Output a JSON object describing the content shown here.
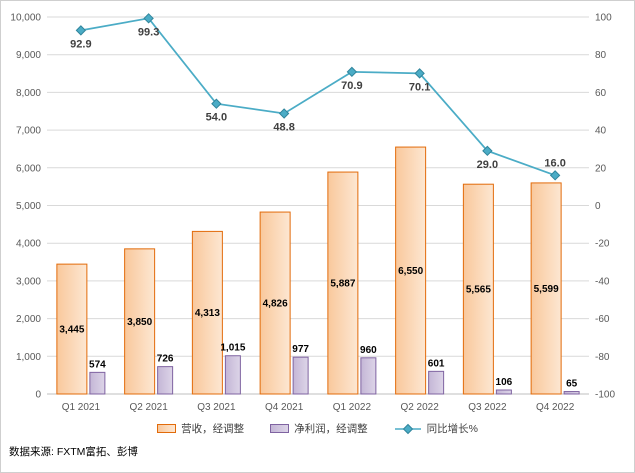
{
  "chart_data": {
    "type": "combo-bar-line",
    "title": "",
    "categories": [
      "Q1 2021",
      "Q2 2021",
      "Q3 2021",
      "Q4 2021",
      "Q1 2022",
      "Q2 2022",
      "Q3 2022",
      "Q4 2022"
    ],
    "bar_series": [
      {
        "name": "营收，经调整",
        "values": [
          3445,
          3850,
          4313,
          4826,
          5887,
          6550,
          5565,
          5599
        ],
        "labels": [
          "3,445",
          "3,850",
          "4,313",
          "4,826",
          "5,887",
          "6,550",
          "5,565",
          "5,599"
        ],
        "fill_from": "#f9c89c",
        "fill_to": "#fde7d2",
        "border": "#e26b0a",
        "axis": "left",
        "label_placement": "inside-center"
      },
      {
        "name": "净利润，经调整",
        "values": [
          574,
          726,
          1015,
          977,
          960,
          601,
          106,
          65
        ],
        "labels": [
          "574",
          "726",
          "1,015",
          "977",
          "960",
          "601",
          "106",
          "65"
        ],
        "fill_from": "#c4b6d6",
        "fill_to": "#ddd5e8",
        "border": "#7f63a1",
        "axis": "left",
        "label_placement": "outside-end"
      }
    ],
    "line_series": [
      {
        "name": "同比增长%",
        "values": [
          92.9,
          99.3,
          54.0,
          48.8,
          70.9,
          70.1,
          29.0,
          16.0
        ],
        "labels": [
          "92.9",
          "99.3",
          "54.0",
          "48.8",
          "70.9",
          "70.1",
          "29.0",
          "16.0"
        ],
        "label_sides": [
          "below",
          "below",
          "below",
          "below",
          "below",
          "below",
          "below",
          "above"
        ],
        "color": "#4bacc6",
        "marker": "diamond",
        "marker_border": "#31859c",
        "axis": "right"
      }
    ],
    "left_axis": {
      "min": 0,
      "max": 10000,
      "step": 1000,
      "tick_labels": [
        "0",
        "1,000",
        "2,000",
        "3,000",
        "4,000",
        "5,000",
        "6,000",
        "7,000",
        "8,000",
        "9,000",
        "10,000"
      ]
    },
    "right_axis": {
      "min": -100,
      "max": 100,
      "step": 20,
      "tick_labels": [
        "-100",
        "-80",
        "-60",
        "-40",
        "-20",
        "0",
        "20",
        "40",
        "60",
        "80",
        "100"
      ]
    },
    "grid": true,
    "gridline_color": "#d9d9d9",
    "axis_line_color": "#bfbfbf",
    "legend_position": "bottom"
  },
  "legend": {
    "revenue_label": "营收，经调整",
    "profit_label": "净利润，经调整",
    "growth_label": "同比增长%"
  },
  "source_note": "数据来源: FXTM富拓、彭博"
}
